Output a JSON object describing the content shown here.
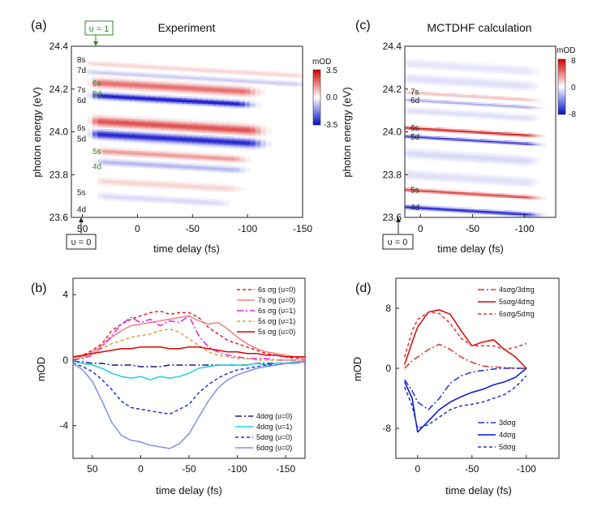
{
  "chart_data": [
    {
      "panel": "(a)",
      "type": "heatmap",
      "title": "Experiment",
      "xlabel": "time delay (fs)",
      "ylabel": "photon energy (eV)",
      "xlim": [
        60,
        -150
      ],
      "ylim": [
        23.6,
        24.4
      ],
      "xticks": [
        "50",
        "0",
        "-50",
        "-100",
        "-150"
      ],
      "xtick_values": [
        50,
        0,
        -50,
        -100,
        -150
      ],
      "yticks": [
        "23.6",
        "23.8",
        "24.0",
        "24.2",
        "24.4"
      ],
      "ytick_values": [
        23.6,
        23.8,
        24.0,
        24.2,
        24.4
      ],
      "colorbar": {
        "label": "mOD",
        "ticks": [
          "3.5",
          "0.0",
          "-3.5"
        ],
        "min": -3.5,
        "max": 3.5
      },
      "state_labels": [
        {
          "text": "8s",
          "e": 24.34,
          "color": "#222222"
        },
        {
          "text": "7d",
          "e": 24.29,
          "color": "#222222"
        },
        {
          "text": "6s",
          "e": 24.23,
          "color": "#2e8b2e",
          "inset": true
        },
        {
          "text": "7s",
          "e": 24.2,
          "color": "#222222"
        },
        {
          "text": "5d",
          "e": 24.18,
          "color": "#2e8b2e",
          "inset": true
        },
        {
          "text": "6d",
          "e": 24.15,
          "color": "#222222"
        },
        {
          "text": "6s",
          "e": 24.02,
          "color": "#222222"
        },
        {
          "text": "5d",
          "e": 23.97,
          "color": "#222222"
        },
        {
          "text": "5s",
          "e": 23.91,
          "color": "#2e8b2e",
          "inset": true
        },
        {
          "text": "4d",
          "e": 23.84,
          "color": "#2e8b2e",
          "inset": true
        },
        {
          "text": "5s",
          "e": 23.72,
          "color": "#222222"
        },
        {
          "text": "4d",
          "e": 23.64,
          "color": "#222222"
        }
      ],
      "bands": [
        {
          "e": 24.32,
          "amp": 0.6,
          "w": 0.01,
          "t1": 40,
          "t2": -140
        },
        {
          "e": 24.28,
          "amp": -0.7,
          "w": 0.01,
          "t1": 40,
          "t2": -140
        },
        {
          "e": 24.23,
          "amp": 2.0,
          "w": 0.018,
          "t1": 35,
          "t2": -95
        },
        {
          "e": 24.17,
          "amp": -3.2,
          "w": 0.013,
          "t1": 35,
          "t2": -90
        },
        {
          "e": 24.05,
          "amp": 2.4,
          "w": 0.02,
          "t1": 35,
          "t2": -100
        },
        {
          "e": 23.99,
          "amp": -3.0,
          "w": 0.018,
          "t1": 35,
          "t2": -100
        },
        {
          "e": 23.91,
          "amp": 1.4,
          "w": 0.013,
          "t1": 30,
          "t2": -85
        },
        {
          "e": 23.86,
          "amp": -1.0,
          "w": 0.013,
          "t1": 30,
          "t2": -85
        },
        {
          "e": 23.77,
          "amp": 0.6,
          "w": 0.015,
          "t1": 30,
          "t2": -80
        },
        {
          "e": 23.7,
          "amp": -0.5,
          "w": 0.015,
          "t1": 30,
          "t2": -70
        }
      ],
      "annotations": [
        {
          "text": "υ = 1",
          "at": {
            "x": 48,
            "y": 24.42
          },
          "color": "#2e8b2e"
        },
        {
          "text": "υ = 0",
          "at": {
            "x": 48,
            "y": 23.58
          },
          "color": "#222222"
        }
      ]
    },
    {
      "panel": "(c)",
      "type": "heatmap",
      "title": "MCTDHF calculation",
      "xlabel": "time delay (fs)",
      "ylabel": "photon energy (eV)",
      "xlim": [
        15,
        -130
      ],
      "ylim": [
        23.6,
        24.4
      ],
      "xticks": [
        "0",
        "-50",
        "-100"
      ],
      "xtick_values": [
        0,
        -50,
        -100
      ],
      "yticks": [
        "23.6",
        "23.8",
        "24.0",
        "24.2",
        "24.4"
      ],
      "ytick_values": [
        23.6,
        23.8,
        24.0,
        24.2,
        24.4
      ],
      "colorbar": {
        "label": "mOD",
        "ticks": [
          "8",
          "0",
          "-8"
        ],
        "min": -8,
        "max": 8
      },
      "state_labels": [
        {
          "text": "7s",
          "e": 24.19,
          "color": "#222222"
        },
        {
          "text": "6d",
          "e": 24.15,
          "color": "#222222"
        },
        {
          "text": "6s",
          "e": 24.02,
          "color": "#222222"
        },
        {
          "text": "5d",
          "e": 23.98,
          "color": "#222222"
        },
        {
          "text": "5s",
          "e": 23.73,
          "color": "#222222"
        },
        {
          "text": "4d",
          "e": 23.65,
          "color": "#222222"
        }
      ],
      "bands": [
        {
          "e": 24.32,
          "amp": -0.8,
          "w": 0.02,
          "t1": 10,
          "t2": -100
        },
        {
          "e": 24.25,
          "amp": -1.0,
          "w": 0.02,
          "t1": 10,
          "t2": -100
        },
        {
          "e": 24.185,
          "amp": 2.2,
          "w": 0.006,
          "t1": 10,
          "t2": -100
        },
        {
          "e": 24.15,
          "amp": -2.8,
          "w": 0.006,
          "t1": 10,
          "t2": -100
        },
        {
          "e": 24.1,
          "amp": -1.0,
          "w": 0.015,
          "t1": 10,
          "t2": -100
        },
        {
          "e": 24.02,
          "amp": 7.5,
          "w": 0.006,
          "t1": 12,
          "t2": -100
        },
        {
          "e": 23.98,
          "amp": -6.5,
          "w": 0.006,
          "t1": 12,
          "t2": -100
        },
        {
          "e": 23.9,
          "amp": -1.2,
          "w": 0.02,
          "t1": 10,
          "t2": -100
        },
        {
          "e": 23.8,
          "amp": -1.0,
          "w": 0.02,
          "t1": 10,
          "t2": -100
        },
        {
          "e": 23.73,
          "amp": 6.0,
          "w": 0.007,
          "t1": 12,
          "t2": -100
        },
        {
          "e": 23.65,
          "amp": -7.0,
          "w": 0.008,
          "t1": 12,
          "t2": -100
        }
      ],
      "annotations": [
        {
          "text": "υ = 0",
          "at": {
            "x": 5,
            "y": 23.58
          },
          "color": "#222222"
        }
      ]
    },
    {
      "panel": "(b)",
      "type": "line",
      "xlabel": "time delay (fs)",
      "ylabel": "mOD",
      "xlim": [
        70,
        -170
      ],
      "ylim": [
        -6,
        5
      ],
      "xticks": [
        "50",
        "0",
        "-50",
        "-100",
        "-150"
      ],
      "xtick_values": [
        50,
        0,
        -50,
        -100,
        -150
      ],
      "yticks": [
        "4",
        "0",
        "-4"
      ],
      "ytick_values": [
        4,
        0,
        -4
      ],
      "legend_top": [
        "6s σg (υ=0)",
        "7s σg (υ=0)",
        "6s σg (υ=1)",
        "5s σg (υ=1)",
        "5s σg (υ=0)"
      ],
      "legend_bottom": [
        "4dσg (υ=0)",
        "4dσg (υ=1)",
        "5dσg (υ=0)",
        "6dσg (υ=0)"
      ],
      "x": [
        70,
        60,
        50,
        40,
        30,
        20,
        10,
        0,
        -10,
        -20,
        -30,
        -40,
        -50,
        -60,
        -70,
        -80,
        -90,
        -100,
        -110,
        -120,
        -130,
        -140,
        -150,
        -160,
        -170
      ],
      "series": [
        {
          "name": "6s σg (υ=0)",
          "color": "#e0202a",
          "dash": "4,3",
          "values": [
            0.1,
            0.3,
            0.6,
            1.0,
            1.8,
            2.2,
            2.5,
            2.7,
            2.9,
            3.0,
            2.8,
            2.9,
            2.9,
            2.6,
            2.0,
            1.6,
            1.2,
            1.0,
            0.8,
            0.6,
            0.4,
            0.3,
            0.2,
            0.1,
            0.1
          ]
        },
        {
          "name": "7s σg (υ=0)",
          "color": "#f08080",
          "dash": "",
          "values": [
            0.1,
            0.2,
            0.5,
            0.9,
            1.4,
            1.8,
            2.1,
            2.2,
            2.3,
            2.4,
            2.5,
            2.6,
            2.7,
            2.4,
            2.2,
            2.3,
            1.9,
            1.4,
            1.0,
            0.7,
            0.5,
            0.4,
            0.3,
            0.2,
            0.1
          ]
        },
        {
          "name": "6s σg (υ=1)",
          "color": "#e020e0",
          "dash": "8,3,2,3",
          "values": [
            0.0,
            0.1,
            0.3,
            0.8,
            1.5,
            2.2,
            2.6,
            2.3,
            2.5,
            2.1,
            2.4,
            2.3,
            2.7,
            1.5,
            0.8,
            0.5,
            0.3,
            0.2,
            0.1,
            0.1,
            0.1,
            0.0,
            0.0,
            0.0,
            0.0
          ]
        },
        {
          "name": "5s σg (υ=1)",
          "color": "#e0a040",
          "dash": "4,3",
          "values": [
            0.1,
            0.2,
            0.4,
            0.7,
            1.0,
            1.2,
            1.4,
            1.5,
            1.6,
            1.8,
            1.9,
            1.7,
            1.3,
            0.9,
            0.5,
            0.3,
            0.2,
            0.1,
            0.1,
            0.0,
            0.0,
            0.0,
            0.0,
            0.0,
            0.0
          ]
        },
        {
          "name": "5s σg (υ=0)",
          "color": "#e00000",
          "dash": "",
          "values": [
            0.2,
            0.3,
            0.4,
            0.5,
            0.6,
            0.7,
            0.7,
            0.8,
            0.8,
            0.8,
            0.7,
            0.7,
            0.8,
            0.8,
            0.7,
            0.6,
            0.5,
            0.5,
            0.4,
            0.4,
            0.3,
            0.3,
            0.2,
            0.2,
            0.2
          ]
        },
        {
          "name": "4dσg (υ=0)",
          "color": "#1a1a80",
          "dash": "8,3,2,3",
          "values": [
            -0.1,
            -0.1,
            -0.2,
            -0.2,
            -0.3,
            -0.3,
            -0.3,
            -0.4,
            -0.4,
            -0.4,
            -0.3,
            -0.3,
            -0.3,
            -0.3,
            -0.3,
            -0.3,
            -0.3,
            -0.3,
            -0.3,
            -0.2,
            -0.2,
            -0.2,
            -0.2,
            -0.1,
            -0.1
          ]
        },
        {
          "name": "4dσg (υ=1)",
          "color": "#20d0e0",
          "dash": "",
          "values": [
            -0.1,
            -0.2,
            -0.3,
            -0.5,
            -0.8,
            -1.0,
            -1.1,
            -1.0,
            -1.2,
            -1.0,
            -1.1,
            -1.0,
            -0.8,
            -0.5,
            -0.4,
            -0.3,
            -0.3,
            -0.3,
            -0.3,
            -0.2,
            -0.3,
            -0.2,
            -0.2,
            -0.1,
            -0.1
          ]
        },
        {
          "name": "5dσg (υ=0)",
          "color": "#2030e0",
          "dash": "4,3",
          "values": [
            -0.2,
            -0.4,
            -0.7,
            -1.2,
            -1.8,
            -2.5,
            -2.9,
            -3.0,
            -3.1,
            -3.2,
            -3.3,
            -3.0,
            -2.7,
            -2.0,
            -1.5,
            -1.1,
            -0.8,
            -0.6,
            -0.5,
            -0.4,
            -0.3,
            -0.3,
            -0.2,
            -0.2,
            -0.1
          ]
        },
        {
          "name": "6dσg (υ=0)",
          "color": "#8090e8",
          "dash": "",
          "values": [
            -0.2,
            -0.6,
            -1.3,
            -2.5,
            -3.8,
            -4.6,
            -4.9,
            -5.0,
            -5.2,
            -5.3,
            -5.4,
            -5.1,
            -4.5,
            -3.5,
            -2.5,
            -1.7,
            -1.2,
            -0.9,
            -0.7,
            -0.5,
            -0.4,
            -0.3,
            -0.2,
            -0.2,
            -0.1
          ]
        }
      ]
    },
    {
      "panel": "(d)",
      "type": "line",
      "xlabel": "time delay (fs)",
      "ylabel": "mOD",
      "xlim": [
        20,
        -130
      ],
      "ylim": [
        -12,
        12
      ],
      "xticks": [
        "0",
        "-50",
        "-100"
      ],
      "xtick_values": [
        0,
        -50,
        -100
      ],
      "yticks": [
        "8",
        "0",
        "-8"
      ],
      "ytick_values": [
        8,
        0,
        -8
      ],
      "legend_top": [
        "4sσg/3dπg",
        "5sσg/4dπg",
        "6sσg/5dπg"
      ],
      "legend_bottom": [
        "3dσg",
        "4dσg",
        "5dσg"
      ],
      "x": [
        12,
        5,
        0,
        -10,
        -20,
        -30,
        -40,
        -50,
        -60,
        -70,
        -80,
        -90,
        -100
      ],
      "series": [
        {
          "name": "4sσg/3dπg",
          "color": "#e03030",
          "dash": "8,3,2,3",
          "values": [
            0.0,
            1.0,
            1.5,
            2.5,
            3.2,
            2.5,
            1.5,
            0.8,
            0.3,
            0.2,
            0.1,
            0.0,
            0.0
          ]
        },
        {
          "name": "5sσg/4dπg",
          "color": "#e00000",
          "dash": "",
          "values": [
            0.5,
            3.5,
            5.5,
            7.5,
            7.8,
            7.2,
            5.0,
            3.0,
            3.5,
            3.8,
            2.5,
            1.5,
            0.0
          ]
        },
        {
          "name": "6sσg/5dπg",
          "color": "#e03030",
          "dash": "4,3",
          "values": [
            1.5,
            5.0,
            6.5,
            7.5,
            7.3,
            6.0,
            4.0,
            3.0,
            3.0,
            3.0,
            2.5,
            2.8,
            3.3
          ]
        },
        {
          "name": "3dσg",
          "color": "#2030d0",
          "dash": "8,3,2,3",
          "values": [
            -1.5,
            -3.0,
            -4.5,
            -5.5,
            -4.0,
            -2.0,
            -1.0,
            -0.5,
            -0.3,
            -0.1,
            0.0,
            0.0,
            0.0
          ]
        },
        {
          "name": "4dσg",
          "color": "#0010e0",
          "dash": "",
          "values": [
            -1.8,
            -4.0,
            -8.5,
            -7.0,
            -5.5,
            -4.5,
            -3.8,
            -3.2,
            -2.8,
            -2.2,
            -1.8,
            -1.2,
            0.0
          ]
        },
        {
          "name": "5dσg",
          "color": "#2030d0",
          "dash": "4,3",
          "values": [
            -2.5,
            -5.0,
            -8.0,
            -7.5,
            -6.5,
            -5.5,
            -5.0,
            -4.8,
            -4.5,
            -4.0,
            -3.5,
            -2.5,
            -1.0
          ]
        }
      ]
    }
  ]
}
